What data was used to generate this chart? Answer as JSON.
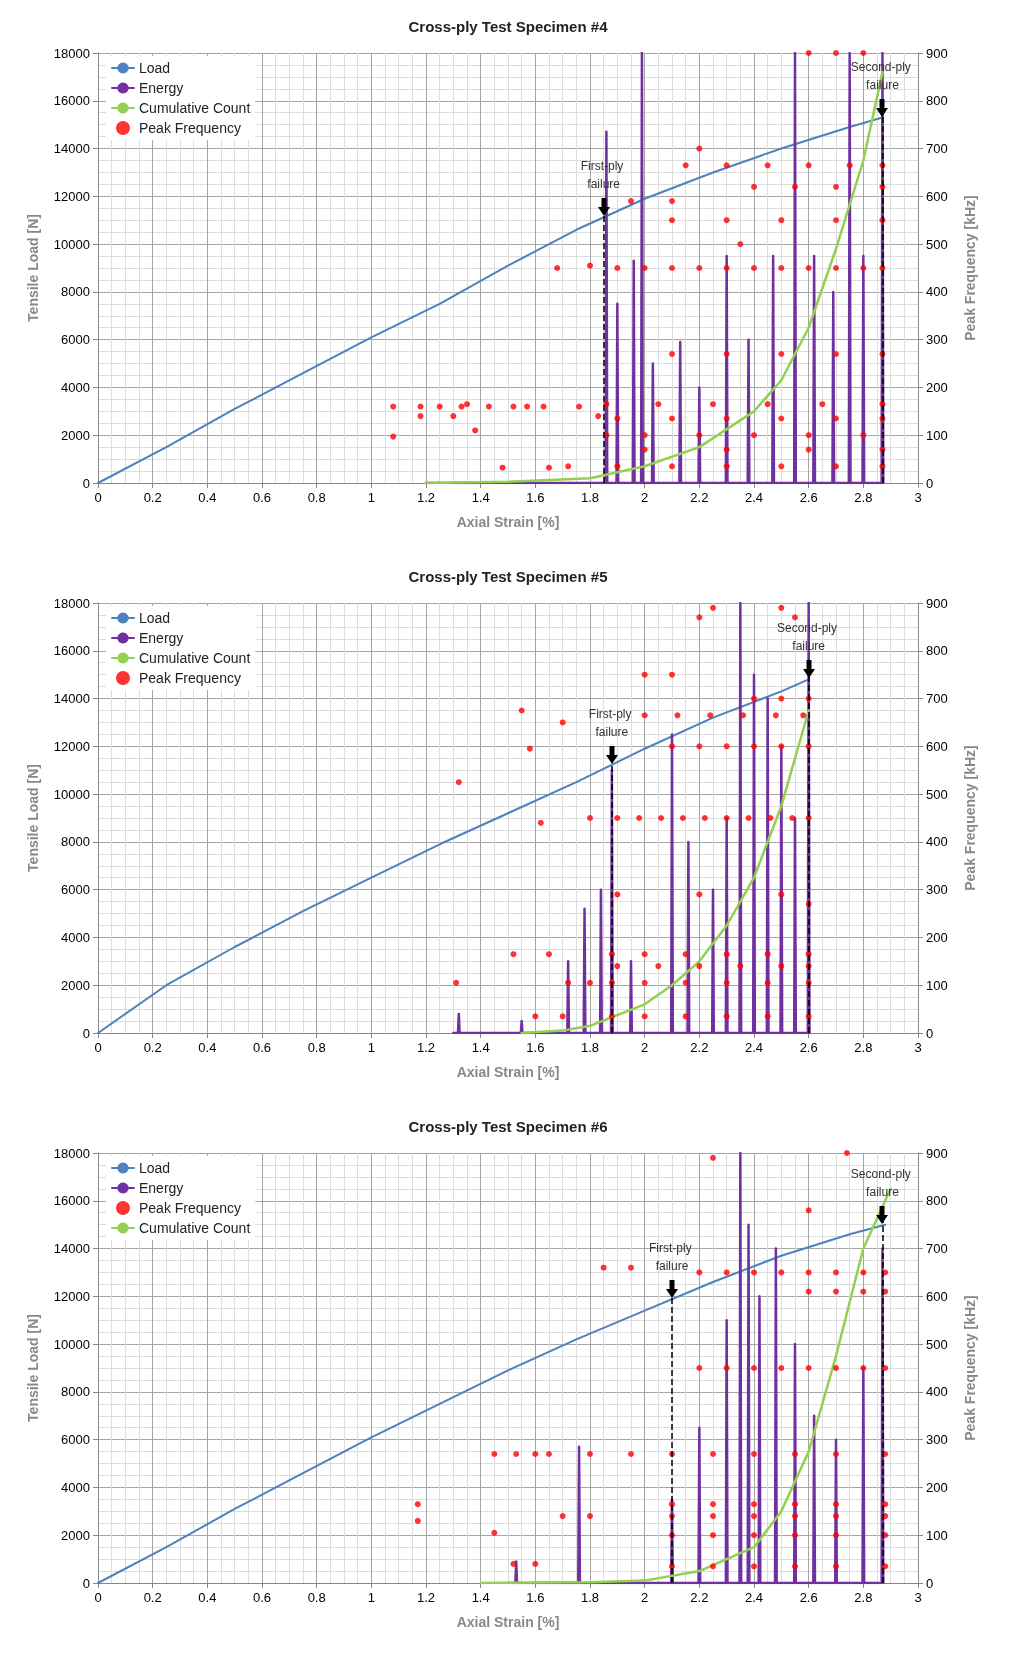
{
  "chart_data": [
    {
      "type": "line",
      "title": "Cross-ply Test Specimen #4",
      "xlabel": "Axial Strain [%]",
      "ylabel": "Tensile Load [N]",
      "y2label": "Peak Frequency [kHz]",
      "xlim": [
        0,
        3
      ],
      "xticks": [
        0,
        0.2,
        0.4,
        0.6,
        0.8,
        1,
        1.2,
        1.4,
        1.6,
        1.8,
        2,
        2.2,
        2.4,
        2.6,
        2.8,
        3
      ],
      "ylim": [
        0,
        18000
      ],
      "yticks": [
        0,
        2000,
        4000,
        6000,
        8000,
        10000,
        12000,
        14000,
        16000,
        18000
      ],
      "y2lim": [
        0,
        900
      ],
      "y2ticks": [
        0,
        100,
        200,
        300,
        400,
        500,
        600,
        700,
        800,
        900
      ],
      "grid": true,
      "legend": "top left",
      "series": [
        {
          "name": "Load",
          "type": "line",
          "color": "#4f81bd",
          "x": [
            0,
            0.25,
            0.5,
            0.75,
            1,
            1.25,
            1.5,
            1.75,
            2,
            2.25,
            2.5,
            2.75,
            2.87
          ],
          "values": [
            0,
            1500,
            3100,
            4600,
            6100,
            7500,
            9100,
            10600,
            11900,
            13000,
            14000,
            14900,
            15300
          ]
        },
        {
          "name": "Energy",
          "type": "line",
          "color": "#7030a0",
          "x": [
            1.2,
            1.857,
            1.86,
            1.863,
            1.897,
            1.9,
            1.903,
            1.957,
            1.96,
            1.963,
            1.987,
            1.99,
            1.993,
            2.027,
            2.03,
            2.033,
            2.127,
            2.13,
            2.133,
            2.197,
            2.2,
            2.203,
            2.297,
            2.3,
            2.303,
            2.377,
            2.38,
            2.383,
            2.467,
            2.47,
            2.473,
            2.547,
            2.55,
            2.553,
            2.617,
            2.62,
            2.623,
            2.687,
            2.69,
            2.693,
            2.747,
            2.75,
            2.753,
            2.797,
            2.8,
            2.803,
            2.867,
            2.87,
            2.873
          ],
          "values": [
            0,
            0,
            14700,
            0,
            0,
            7500,
            0,
            0,
            9300,
            0,
            0,
            18000,
            0,
            0,
            5000,
            0,
            0,
            5900,
            0,
            0,
            4000,
            0,
            0,
            9500,
            0,
            0,
            6000,
            0,
            0,
            9500,
            0,
            0,
            18000,
            0,
            0,
            9500,
            0,
            0,
            8000,
            0,
            0,
            18000,
            0,
            0,
            9500,
            0,
            0,
            18000,
            0
          ]
        },
        {
          "name": "Cumulative Count",
          "type": "line",
          "color": "#92d050",
          "x": [
            1.2,
            1.5,
            1.8,
            2,
            2.2,
            2.4,
            2.5,
            2.6,
            2.7,
            2.8,
            2.87
          ],
          "values": [
            0,
            50,
            200,
            700,
            1500,
            3000,
            4300,
            6500,
            9800,
            13500,
            17200
          ]
        },
        {
          "name": "Peak Frequency",
          "type": "scatter",
          "axis": "y2",
          "color": "#ff0000",
          "x": [
            1.08,
            1.08,
            1.18,
            1.18,
            1.25,
            1.3,
            1.33,
            1.35,
            1.38,
            1.43,
            1.48,
            1.52,
            1.57,
            1.63,
            1.65,
            1.68,
            1.72,
            1.76,
            1.8,
            1.83,
            1.86,
            2.05,
            2.25,
            2.45,
            2.65,
            2.87,
            1.9,
            2.1,
            2.3,
            2.5,
            2.7,
            2.87,
            1.86,
            2,
            2.2,
            2.4,
            2.6,
            2.8,
            2,
            2.3,
            2.6,
            2.87,
            1.9,
            2.1,
            2.3,
            2.5,
            2.7,
            2.87,
            2.1,
            2.3,
            2.5,
            2.7,
            2.87,
            1.9,
            2,
            2.1,
            2.2,
            2.3,
            2.4,
            2.5,
            2.6,
            2.7,
            2.8,
            2.87,
            2.1,
            2.3,
            2.5,
            2.7,
            2.87,
            2.4,
            2.55,
            2.7,
            2.87,
            2.15,
            2.3,
            2.45,
            2.6,
            2.75,
            2.87,
            2.6,
            2.7,
            2.8,
            2.2,
            2.35,
            2.1,
            1.95
          ],
          "values": [
            160,
            97,
            160,
            140,
            160,
            140,
            160,
            165,
            110,
            160,
            32,
            160,
            160,
            160,
            32,
            450,
            35,
            160,
            455,
            140,
            165,
            165,
            165,
            165,
            165,
            165,
            135,
            135,
            135,
            135,
            135,
            135,
            100,
            100,
            100,
            100,
            100,
            100,
            70,
            70,
            70,
            70,
            35,
            35,
            35,
            35,
            35,
            35,
            270,
            270,
            270,
            270,
            270,
            450,
            450,
            450,
            450,
            450,
            450,
            450,
            450,
            450,
            450,
            450,
            550,
            550,
            550,
            550,
            550,
            620,
            620,
            620,
            620,
            665,
            665,
            665,
            665,
            665,
            665,
            900,
            900,
            900,
            700,
            500,
            590,
            590
          ]
        }
      ],
      "ref_lines": [
        {
          "axis": "x",
          "value": 1.85,
          "label": "First-ply failure",
          "color": "#000000",
          "line_style": "dashed"
        },
        {
          "axis": "x",
          "value": 2.87,
          "label": "Second-ply failure",
          "color": "#000000",
          "line_style": "dashed"
        }
      ]
    },
    {
      "type": "line",
      "title": "Cross-ply Test Specimen #5",
      "xlabel": "Axial Strain [%]",
      "ylabel": "Tensile Load [N]",
      "y2label": "Peak Frequency [kHz]",
      "xlim": [
        0,
        3
      ],
      "xticks": [
        0,
        0.2,
        0.4,
        0.6,
        0.8,
        1,
        1.2,
        1.4,
        1.6,
        1.8,
        2,
        2.2,
        2.4,
        2.6,
        2.8,
        3
      ],
      "ylim": [
        0,
        18000
      ],
      "yticks": [
        0,
        2000,
        4000,
        6000,
        8000,
        10000,
        12000,
        14000,
        16000,
        18000
      ],
      "y2lim": [
        0,
        900
      ],
      "y2ticks": [
        0,
        100,
        200,
        300,
        400,
        500,
        600,
        700,
        800,
        900
      ],
      "grid": true,
      "legend": "top left",
      "series": [
        {
          "name": "Load",
          "type": "line",
          "color": "#4f81bd",
          "x": [
            0,
            0.25,
            0.5,
            0.75,
            1,
            1.25,
            1.5,
            1.75,
            2,
            2.25,
            2.5,
            2.6
          ],
          "values": [
            0,
            2000,
            3600,
            5100,
            6500,
            7900,
            9200,
            10500,
            11900,
            13200,
            14300,
            14800
          ]
        },
        {
          "name": "Energy",
          "type": "line",
          "color": "#7030a0",
          "x": [
            1.3,
            1.317,
            1.32,
            1.323,
            1.547,
            1.55,
            1.553,
            1.717,
            1.72,
            1.723,
            1.777,
            1.78,
            1.783,
            1.837,
            1.84,
            1.843,
            1.877,
            1.88,
            1.883,
            1.947,
            1.95,
            1.953,
            2.097,
            2.1,
            2.103,
            2.157,
            2.16,
            2.163,
            2.247,
            2.25,
            2.253,
            2.297,
            2.3,
            2.303,
            2.347,
            2.35,
            2.353,
            2.397,
            2.4,
            2.403,
            2.447,
            2.45,
            2.453,
            2.497,
            2.5,
            2.503,
            2.547,
            2.55,
            2.553,
            2.597,
            2.6,
            2.603
          ],
          "values": [
            0,
            0,
            800,
            0,
            0,
            500,
            0,
            0,
            3000,
            0,
            0,
            5200,
            0,
            0,
            6000,
            0,
            0,
            11000,
            0,
            0,
            3000,
            0,
            0,
            12500,
            0,
            0,
            8000,
            0,
            0,
            6000,
            0,
            0,
            9000,
            0,
            0,
            18000,
            0,
            0,
            15000,
            0,
            0,
            14000,
            0,
            0,
            12000,
            0,
            0,
            9000,
            0,
            0,
            18000,
            0
          ]
        },
        {
          "name": "Cumulative Count",
          "type": "line",
          "color": "#92d050",
          "x": [
            1.55,
            1.7,
            1.8,
            2,
            2.1,
            2.2,
            2.3,
            2.4,
            2.5,
            2.55,
            2.6
          ],
          "values": [
            0,
            100,
            300,
            1200,
            2000,
            3000,
            4500,
            6500,
            9500,
            11500,
            13500
          ]
        },
        {
          "name": "Peak Frequency",
          "type": "scatter",
          "axis": "y2",
          "color": "#ff0000",
          "x": [
            1.32,
            1.31,
            1.52,
            1.55,
            1.58,
            1.62,
            1.7,
            1.65,
            1.72,
            1.8,
            1.8,
            1.6,
            1.7,
            2,
            2.1,
            2.2,
            2.25,
            2.5,
            2.55,
            1.88,
            2,
            2.15,
            2.3,
            2.45,
            2.6,
            1.9,
            2.05,
            2.2,
            2.35,
            2.5,
            2.6,
            1.88,
            2,
            2.15,
            2.3,
            2.45,
            2.6,
            1.88,
            2,
            2.15,
            2.3,
            2.45,
            2.6,
            1.9,
            1.98,
            2.06,
            2.14,
            2.22,
            2.3,
            2.38,
            2.46,
            2.54,
            2.6,
            2,
            2.12,
            2.24,
            2.36,
            2.48,
            2.58,
            2.1,
            2.2,
            2.3,
            2.4,
            2.5,
            2.6,
            2.4,
            2.5,
            2.6,
            1.9,
            2.2,
            2.5,
            2.6
          ],
          "values": [
            525,
            105,
            165,
            675,
            595,
            440,
            650,
            165,
            105,
            450,
            105,
            35,
            35,
            750,
            750,
            870,
            890,
            890,
            870,
            165,
            165,
            165,
            165,
            165,
            165,
            140,
            140,
            140,
            140,
            140,
            140,
            105,
            105,
            105,
            105,
            105,
            105,
            35,
            35,
            35,
            35,
            35,
            35,
            450,
            450,
            450,
            450,
            450,
            450,
            450,
            450,
            450,
            450,
            665,
            665,
            665,
            665,
            665,
            665,
            600,
            600,
            600,
            600,
            600,
            600,
            700,
            700,
            700,
            290,
            290,
            290,
            270
          ]
        }
      ],
      "ref_lines": [
        {
          "axis": "x",
          "value": 1.88,
          "label": "First-ply failure",
          "color": "#000000",
          "line_style": "dashed"
        },
        {
          "axis": "x",
          "value": 2.6,
          "label": "Second-ply failure",
          "color": "#000000",
          "line_style": "dashed"
        }
      ]
    },
    {
      "type": "line",
      "title": "Cross-ply Test Specimen #6",
      "xlabel": "Axial Strain [%]",
      "ylabel": "Tensile Load [N]",
      "y2label": "Peak Frequency [kHz]",
      "xlim": [
        0,
        3
      ],
      "xticks": [
        0,
        0.2,
        0.4,
        0.6,
        0.8,
        1,
        1.2,
        1.4,
        1.6,
        1.8,
        2,
        2.2,
        2.4,
        2.6,
        2.8,
        3
      ],
      "ylim": [
        0,
        18000
      ],
      "yticks": [
        0,
        2000,
        4000,
        6000,
        8000,
        10000,
        12000,
        14000,
        16000,
        18000
      ],
      "y2lim": [
        0,
        900
      ],
      "y2ticks": [
        0,
        100,
        200,
        300,
        400,
        500,
        600,
        700,
        800,
        900
      ],
      "grid": true,
      "legend": "top left",
      "series": [
        {
          "name": "Load",
          "type": "line",
          "color": "#4f81bd",
          "x": [
            0,
            0.25,
            0.5,
            0.75,
            1,
            1.25,
            1.5,
            1.75,
            2,
            2.25,
            2.5,
            2.75,
            2.88
          ],
          "values": [
            0,
            1500,
            3100,
            4600,
            6100,
            7500,
            8900,
            10200,
            11400,
            12600,
            13700,
            14600,
            15000
          ]
        },
        {
          "name": "Energy",
          "type": "line",
          "color": "#7030a0",
          "x": [
            1.5,
            1.527,
            1.53,
            1.533,
            1.757,
            1.76,
            1.763,
            2.097,
            2.1,
            2.103,
            2.197,
            2.2,
            2.203,
            2.297,
            2.3,
            2.303,
            2.347,
            2.35,
            2.353,
            2.377,
            2.38,
            2.383,
            2.417,
            2.42,
            2.423,
            2.477,
            2.48,
            2.483,
            2.547,
            2.55,
            2.553,
            2.617,
            2.62,
            2.623,
            2.697,
            2.7,
            2.703,
            2.797,
            2.8,
            2.803,
            2.867,
            2.87,
            2.873
          ],
          "values": [
            0,
            0,
            900,
            0,
            0,
            5700,
            0,
            0,
            3500,
            0,
            0,
            6500,
            0,
            0,
            11000,
            0,
            0,
            18000,
            0,
            0,
            15000,
            0,
            0,
            12000,
            0,
            0,
            14000,
            0,
            0,
            10000,
            0,
            0,
            7000,
            0,
            0,
            6000,
            0,
            0,
            9000,
            0,
            0,
            14000,
            0
          ]
        },
        {
          "name": "Peak Frequency",
          "type": "scatter",
          "axis": "y2",
          "color": "#ff0000",
          "x": [
            1.17,
            1.17,
            1.45,
            1.53,
            1.6,
            1.65,
            1.45,
            1.52,
            1.7,
            1.85,
            1.95,
            2.25,
            2.74,
            2.6,
            1.6,
            1.8,
            2.1,
            2.25,
            2.4,
            2.55,
            2.7,
            2.88,
            2.1,
            2.25,
            2.4,
            2.55,
            2.7,
            2.88,
            2.1,
            2.25,
            2.4,
            2.55,
            2.7,
            2.88,
            2.1,
            2.25,
            2.4,
            2.55,
            2.7,
            2.88,
            1.8,
            1.95,
            2.1,
            2.25,
            2.4,
            2.55,
            2.7,
            2.88,
            2.2,
            2.3,
            2.4,
            2.5,
            2.6,
            2.7,
            2.8,
            2.88,
            2.2,
            2.3,
            2.4,
            2.5,
            2.6,
            2.7,
            2.8,
            2.88,
            2.6,
            2.7,
            2.8,
            2.88
          ],
          "values": [
            165,
            130,
            270,
            270,
            270,
            270,
            105,
            40,
            140,
            660,
            660,
            890,
            900,
            780,
            40,
            140,
            165,
            165,
            165,
            165,
            165,
            165,
            140,
            140,
            140,
            140,
            140,
            140,
            100,
            100,
            100,
            100,
            100,
            100,
            35,
            35,
            35,
            35,
            35,
            35,
            270,
            270,
            270,
            270,
            270,
            270,
            270,
            270,
            450,
            450,
            450,
            450,
            450,
            450,
            450,
            450,
            650,
            650,
            650,
            650,
            650,
            650,
            650,
            650,
            610,
            610,
            610,
            610
          ]
        },
        {
          "name": "Cumulative Count",
          "type": "line",
          "color": "#92d050",
          "x": [
            1.4,
            1.8,
            2,
            2.2,
            2.4,
            2.5,
            2.6,
            2.7,
            2.8,
            2.9
          ],
          "values": [
            0,
            30,
            100,
            500,
            1500,
            3000,
            5500,
            9500,
            14000,
            16500
          ]
        }
      ],
      "ref_lines": [
        {
          "axis": "x",
          "value": 2.1,
          "label": "First-ply failure",
          "color": "#000000",
          "line_style": "dashed"
        },
        {
          "axis": "x",
          "value": 2.87,
          "label": "Second-ply failure",
          "color": "#000000",
          "line_style": "dashed"
        }
      ]
    }
  ]
}
